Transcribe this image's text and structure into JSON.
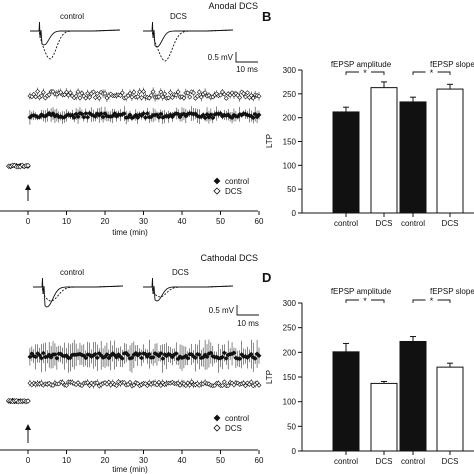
{
  "chart_data": [
    {
      "panel": "",
      "type": "scatter",
      "title": "Anodal DCS",
      "xlabel": "time (min)",
      "ylabel": "",
      "xlim": [
        -5,
        60
      ],
      "xticks": [
        0,
        10,
        20,
        30,
        40,
        50,
        60
      ],
      "legend": {
        "placement": "bottom-right",
        "entries": [
          "control",
          "DCS"
        ]
      },
      "arrow_at_x": 0,
      "inset": {
        "labels": [
          "control",
          "DCS"
        ],
        "scalebar_y": "0.5 mV",
        "scalebar_x": "10 ms"
      },
      "series": [
        {
          "name": "control",
          "marker": "filled-diamond",
          "baseline": 100,
          "post_level": 212
        },
        {
          "name": "DCS",
          "marker": "open-diamond",
          "baseline": 100,
          "post_level": 258
        }
      ]
    },
    {
      "panel": "B",
      "type": "bar",
      "ylabel": "LTP",
      "ylim": [
        0,
        300
      ],
      "yticks": [
        0,
        50,
        100,
        150,
        200,
        250,
        300
      ],
      "groups": [
        {
          "label": "fEPSP amplitude",
          "significance": "*",
          "categories": [
            "control",
            "DCS"
          ],
          "values": [
            212,
            263
          ],
          "errors": [
            10,
            12
          ]
        },
        {
          "label": "fEPSP slope",
          "significance": "*",
          "categories": [
            "control",
            "DCS"
          ],
          "values": [
            233,
            260
          ],
          "errors": [
            10,
            10
          ]
        }
      ]
    },
    {
      "panel": "",
      "type": "scatter",
      "title": "Cathodal DCS",
      "xlabel": "time (min)",
      "ylabel": "",
      "xlim": [
        -5,
        60
      ],
      "xticks": [
        0,
        10,
        20,
        30,
        40,
        50,
        60
      ],
      "legend": {
        "placement": "bottom-right",
        "entries": [
          "control",
          "DCS"
        ]
      },
      "arrow_at_x": 0,
      "inset": {
        "labels": [
          "control",
          "DCS"
        ],
        "scalebar_y": "0.5 mV",
        "scalebar_x": "10 ms"
      },
      "series": [
        {
          "name": "control",
          "marker": "filled-diamond",
          "baseline": 100,
          "post_level": 205
        },
        {
          "name": "DCS",
          "marker": "open-diamond",
          "baseline": 100,
          "post_level": 140
        }
      ]
    },
    {
      "panel": "D",
      "type": "bar",
      "ylabel": "LTP",
      "ylim": [
        0,
        300
      ],
      "yticks": [
        0,
        50,
        100,
        150,
        200,
        250,
        300
      ],
      "groups": [
        {
          "label": "fEPSP amplitude",
          "significance": "*",
          "categories": [
            "control",
            "DCS"
          ],
          "values": [
            201,
            137
          ],
          "errors": [
            17,
            4
          ]
        },
        {
          "label": "fEPSP slope",
          "significance": "*",
          "categories": [
            "control",
            "DCS"
          ],
          "values": [
            222,
            170
          ],
          "errors": [
            10,
            8
          ]
        }
      ]
    }
  ]
}
